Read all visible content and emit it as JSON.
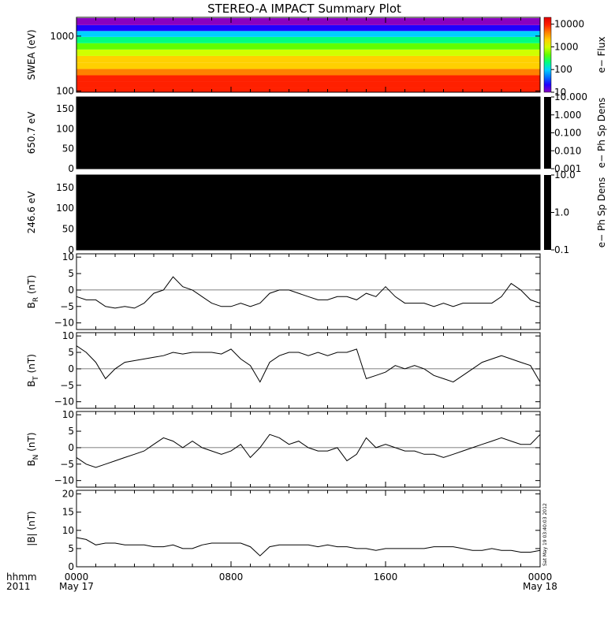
{
  "title": "STEREO-A IMPACT Summary Plot",
  "x_axis": {
    "row1_label": "hhmm",
    "row2_label": "2011",
    "ticks": [
      {
        "time": "0000",
        "date": "May 17",
        "hour": 0
      },
      {
        "time": "0800",
        "date": "",
        "hour": 8
      },
      {
        "time": "1600",
        "date": "",
        "hour": 16
      },
      {
        "time": "0000",
        "date": "May 18",
        "hour": 24
      }
    ]
  },
  "timestamp_note": "Sat May 19 03:40:03 2012",
  "colors": {
    "line": "#000000",
    "spectrogram_bg": "#000000"
  },
  "chart_data": [
    {
      "id": "swea",
      "type": "heatmap",
      "ylabel": "SWEA (eV)",
      "yscale": "log",
      "ylim": [
        95,
        2200
      ],
      "yticks": [
        100,
        1000
      ],
      "ytick_labels": [
        "100",
        "1000"
      ],
      "colorbar": {
        "label": "e− Flux",
        "scale": "log",
        "range": [
          10,
          20000
        ],
        "ticks": [
          10,
          100,
          1000,
          10000
        ],
        "tick_labels": [
          "10",
          "100",
          "1000",
          "10000"
        ]
      },
      "energy_bands": [
        {
          "energy": 100,
          "flux": 12000
        },
        {
          "energy": 130,
          "flux": 9000
        },
        {
          "energy": 170,
          "flux": 6500
        },
        {
          "energy": 220,
          "flux": 4000
        },
        {
          "energy": 290,
          "flux": 2500
        },
        {
          "energy": 380,
          "flux": 1500
        },
        {
          "energy": 500,
          "flux": 800
        },
        {
          "energy": 650,
          "flux": 380
        },
        {
          "energy": 850,
          "flux": 170
        },
        {
          "energy": 1100,
          "flux": 70
        },
        {
          "energy": 1400,
          "flux": 30
        },
        {
          "energy": 1800,
          "flux": 13
        }
      ]
    },
    {
      "id": "pad650",
      "type": "heatmap",
      "ylabel": "650.7 eV",
      "ylim": [
        0,
        180
      ],
      "yticks": [
        0,
        50,
        100,
        150
      ],
      "ytick_labels": [
        "0",
        "50",
        "100",
        "150"
      ],
      "fill": "#000000",
      "colorbar": {
        "label": "e− Ph Sp Dens",
        "scale": "log",
        "range": [
          0.001,
          10
        ],
        "ticks": [
          0.001,
          0.01,
          0.1,
          1,
          10
        ],
        "tick_labels": [
          "0.001",
          "0.010",
          "0.100",
          "1.000",
          "10.000"
        ]
      }
    },
    {
      "id": "pad246",
      "type": "heatmap",
      "ylabel": "246.6 eV",
      "ylim": [
        0,
        180
      ],
      "yticks": [
        0,
        50,
        100,
        150
      ],
      "ytick_labels": [
        "0",
        "50",
        "100",
        "150"
      ],
      "fill": "#000000",
      "colorbar": {
        "label": "e− Ph Sp Dens",
        "scale": "log",
        "range": [
          0.1,
          10
        ],
        "ticks": [
          0.1,
          1,
          10
        ],
        "tick_labels": [
          "0.1",
          "1.0",
          "10.0"
        ]
      }
    },
    {
      "id": "br",
      "type": "line",
      "ylabel_main": "B",
      "ylabel_sub": "R",
      "ylabel_unit": " (nT)",
      "ylim": [
        -12,
        11
      ],
      "yticks": [
        -10,
        -5,
        0,
        5,
        10
      ],
      "ytick_labels": [
        "−10",
        "−5",
        "0",
        "5",
        "10"
      ],
      "x": [
        0,
        0.5,
        1,
        1.5,
        2,
        2.5,
        3,
        3.5,
        4,
        4.5,
        5,
        5.5,
        6,
        6.5,
        7,
        7.5,
        8,
        8.5,
        9,
        9.5,
        10,
        10.5,
        11,
        11.5,
        12,
        12.5,
        13,
        13.5,
        14,
        14.5,
        15,
        15.5,
        16,
        16.5,
        17,
        17.5,
        18,
        18.5,
        19,
        19.5,
        20,
        20.5,
        21,
        21.5,
        22,
        22.5,
        23,
        23.5,
        24
      ],
      "y": [
        -2,
        -3,
        -3,
        -5,
        -5.5,
        -5,
        -5.5,
        -4,
        -1,
        0,
        4,
        1,
        0,
        -2,
        -4,
        -5,
        -5,
        -4,
        -5,
        -4,
        -1,
        0,
        0,
        -1,
        -2,
        -3,
        -3,
        -2,
        -2,
        -3,
        -1,
        -2,
        1,
        -2,
        -4,
        -4,
        -4,
        -5,
        -4,
        -5,
        -4,
        -4,
        -4,
        -4,
        -2,
        2,
        0,
        -3,
        -4
      ]
    },
    {
      "id": "bt",
      "type": "line",
      "ylabel_main": "B",
      "ylabel_sub": "T",
      "ylabel_unit": " (nT)",
      "ylim": [
        -12,
        11
      ],
      "yticks": [
        -10,
        -5,
        0,
        5,
        10
      ],
      "ytick_labels": [
        "−10",
        "−5",
        "0",
        "5",
        "10"
      ],
      "x": [
        0,
        0.5,
        1,
        1.5,
        2,
        2.5,
        3,
        3.5,
        4,
        4.5,
        5,
        5.5,
        6,
        6.5,
        7,
        7.5,
        8,
        8.5,
        9,
        9.5,
        10,
        10.5,
        11,
        11.5,
        12,
        12.5,
        13,
        13.5,
        14,
        14.5,
        15,
        15.5,
        16,
        16.5,
        17,
        17.5,
        18,
        18.5,
        19,
        19.5,
        20,
        20.5,
        21,
        21.5,
        22,
        22.5,
        23,
        23.5,
        24
      ],
      "y": [
        7,
        5,
        2,
        -3,
        0,
        2,
        2.5,
        3,
        3.5,
        4,
        5,
        4.5,
        5,
        5,
        5,
        4.5,
        6,
        3,
        1,
        -4,
        2,
        4,
        5,
        5,
        4,
        5,
        4,
        5,
        5,
        6,
        -3,
        -2,
        -1,
        1,
        0,
        1,
        0,
        -2,
        -3,
        -4,
        -2,
        0,
        2,
        3,
        4,
        3,
        2,
        1,
        -4
      ]
    },
    {
      "id": "bn",
      "type": "line",
      "ylabel_main": "B",
      "ylabel_sub": "N",
      "ylabel_unit": " (nT)",
      "ylim": [
        -12,
        11
      ],
      "yticks": [
        -10,
        -5,
        0,
        5,
        10
      ],
      "ytick_labels": [
        "−10",
        "−5",
        "0",
        "5",
        "10"
      ],
      "x": [
        0,
        0.5,
        1,
        1.5,
        2,
        2.5,
        3,
        3.5,
        4,
        4.5,
        5,
        5.5,
        6,
        6.5,
        7,
        7.5,
        8,
        8.5,
        9,
        9.5,
        10,
        10.5,
        11,
        11.5,
        12,
        12.5,
        13,
        13.5,
        14,
        14.5,
        15,
        15.5,
        16,
        16.5,
        17,
        17.5,
        18,
        18.5,
        19,
        19.5,
        20,
        20.5,
        21,
        21.5,
        22,
        22.5,
        23,
        23.5,
        24
      ],
      "y": [
        -3,
        -5,
        -6,
        -5,
        -4,
        -3,
        -2,
        -1,
        1,
        3,
        2,
        0,
        2,
        0,
        -1,
        -2,
        -1,
        1,
        -3,
        0,
        4,
        3,
        1,
        2,
        0,
        -1,
        -1,
        0,
        -4,
        -2,
        3,
        0,
        1,
        0,
        -1,
        -1,
        -2,
        -2,
        -3,
        -2,
        -1,
        0,
        1,
        2,
        3,
        2,
        1,
        1,
        4
      ]
    },
    {
      "id": "bmag",
      "type": "line",
      "ylabel_main": "|B|",
      "ylabel_sub": "",
      "ylabel_unit": " (nT)",
      "ylim": [
        0,
        21
      ],
      "yticks": [
        0,
        5,
        10,
        15,
        20
      ],
      "ytick_labels": [
        "0",
        "5",
        "10",
        "15",
        "20"
      ],
      "x": [
        0,
        0.5,
        1,
        1.5,
        2,
        2.5,
        3,
        3.5,
        4,
        4.5,
        5,
        5.5,
        6,
        6.5,
        7,
        7.5,
        8,
        8.5,
        9,
        9.5,
        10,
        10.5,
        11,
        11.5,
        12,
        12.5,
        13,
        13.5,
        14,
        14.5,
        15,
        15.5,
        16,
        16.5,
        17,
        17.5,
        18,
        18.5,
        19,
        19.5,
        20,
        20.5,
        21,
        21.5,
        22,
        22.5,
        23,
        23.5,
        24
      ],
      "y": [
        8,
        7.5,
        6,
        6.5,
        6.5,
        6,
        6,
        6,
        5.5,
        5.5,
        6,
        5,
        5,
        6,
        6.5,
        6.5,
        6.5,
        6.5,
        5.5,
        3,
        5.5,
        6,
        6,
        6,
        6,
        5.5,
        6,
        5.5,
        5.5,
        5,
        5,
        4.5,
        5,
        5,
        5,
        5,
        5,
        5.5,
        5.5,
        5.5,
        5,
        4.5,
        4.5,
        5,
        4.5,
        4.5,
        4,
        4,
        4.5
      ]
    }
  ]
}
